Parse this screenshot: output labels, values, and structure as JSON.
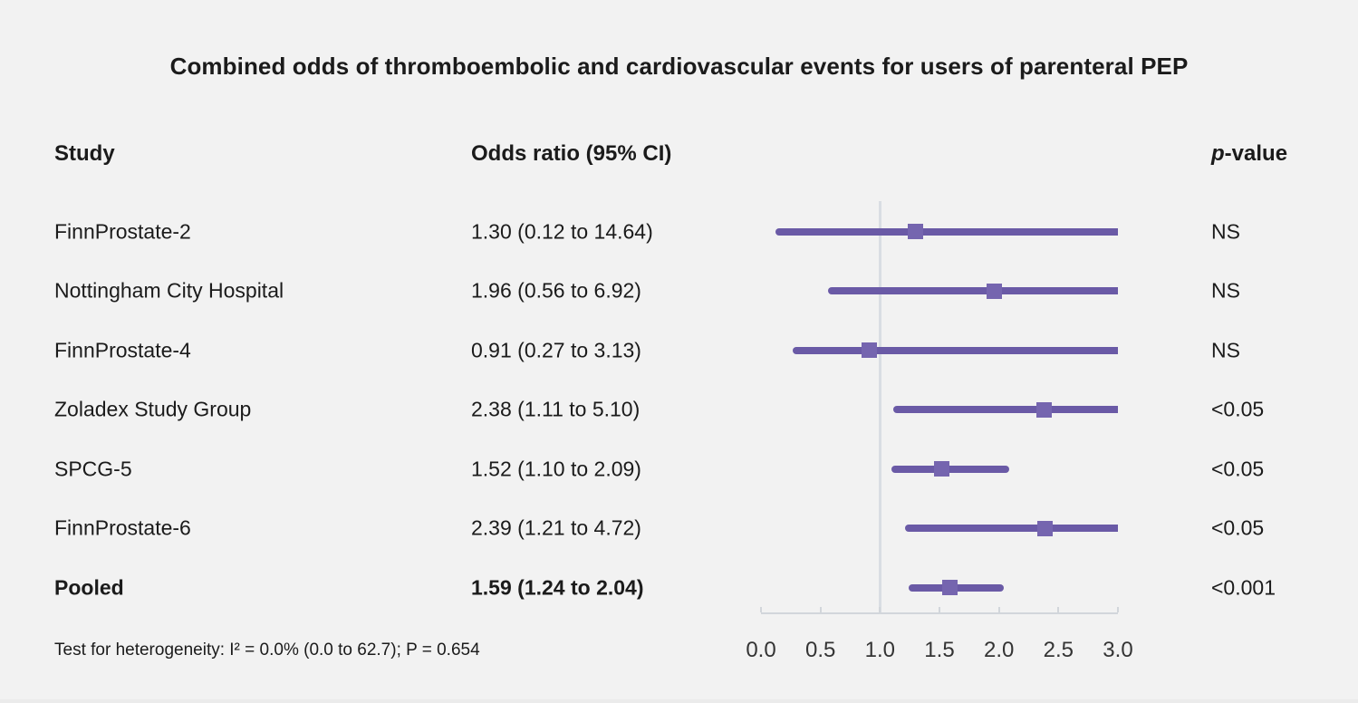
{
  "title": "Combined odds of thromboembolic and cardiovascular events for users of parenteral PEP",
  "columns": {
    "study": "Study",
    "odds_ratio": "Odds ratio (95% CI)",
    "p_value_p": "p",
    "p_value_rest": "-value"
  },
  "footer": "Test for heterogeneity: I² = 0.0% (0.0 to 62.7); P = 0.654",
  "colors": {
    "background": "#f2f2f2",
    "ci_line": "#6a5aa6",
    "marker": "#7565af",
    "reference_line": "#d9dde3",
    "axis": "#d2d6db",
    "text": "#1b1b1b",
    "tick_text": "#343434"
  },
  "chart_data": {
    "type": "forest",
    "title": "Combined odds of thromboembolic and cardiovascular events for users of parenteral PEP",
    "x_axis": {
      "min": 0,
      "max": 3,
      "tick_values": [
        0,
        0.5,
        1,
        1.5,
        2,
        2.5,
        3
      ],
      "tick_labels": [
        "0.0",
        "0.5",
        "1.0",
        "1.5",
        "2.0",
        "2.5",
        "3.0"
      ],
      "reference_line": 1.0
    },
    "rows": [
      {
        "study": "FinnProstate-2",
        "or": 1.3,
        "ci_low": 0.12,
        "ci_high": 14.64,
        "or_label": "1.30 (0.12 to 14.64)",
        "p_value": "NS",
        "bold": false
      },
      {
        "study": "Nottingham City Hospital",
        "or": 1.96,
        "ci_low": 0.56,
        "ci_high": 6.92,
        "or_label": "1.96 (0.56 to 6.92)",
        "p_value": "NS",
        "bold": false
      },
      {
        "study": "FinnProstate-4",
        "or": 0.91,
        "ci_low": 0.27,
        "ci_high": 3.13,
        "or_label": "0.91 (0.27 to 3.13)",
        "p_value": "NS",
        "bold": false
      },
      {
        "study": "Zoladex Study Group",
        "or": 2.38,
        "ci_low": 1.11,
        "ci_high": 5.1,
        "or_label": "2.38 (1.11 to 5.10)",
        "p_value": "<0.05",
        "bold": false
      },
      {
        "study": "SPCG-5",
        "or": 1.52,
        "ci_low": 1.1,
        "ci_high": 2.09,
        "or_label": "1.52 (1.10 to 2.09)",
        "p_value": "<0.05",
        "bold": false
      },
      {
        "study": "FinnProstate-6",
        "or": 2.39,
        "ci_low": 1.21,
        "ci_high": 4.72,
        "or_label": "2.39 (1.21 to 4.72)",
        "p_value": "<0.05",
        "bold": false
      },
      {
        "study": "Pooled",
        "or": 1.59,
        "ci_low": 1.24,
        "ci_high": 2.04,
        "or_label": "1.59 (1.24 to 2.04)",
        "p_value": "<0.001",
        "bold": true
      }
    ],
    "heterogeneity_note": "Test for heterogeneity: I² = 0.0% (0.0 to 62.7); P = 0.654"
  }
}
